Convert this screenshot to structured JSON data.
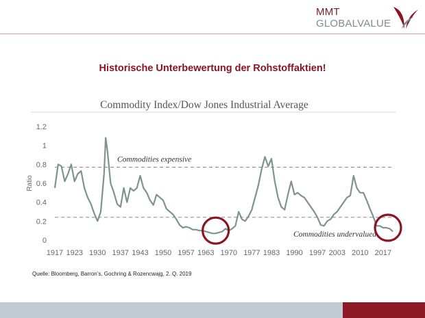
{
  "logo": {
    "line1": "MMT",
    "line2": "GLOBALVALUE"
  },
  "slide": {
    "title": "Historische Unterbewertung der Rohstoffaktien!",
    "source": "Quelle: Bloomberg, Barron’s, Gochring & Rozencwajg, 2. Q. 2019"
  },
  "colors": {
    "accent": "#8b1421",
    "line": "#7d9391",
    "logo_grey": "#7d8b97",
    "footer_grey": "#c3cbd2",
    "footer_red": "#8b1a26"
  },
  "chart_data": {
    "type": "line",
    "title": "Commodity Index/Dow Jones Industrial Average",
    "ylabel": "Ratio",
    "xlabel": "",
    "xlim": [
      1917,
      2021
    ],
    "ylim": [
      0,
      1.2
    ],
    "yticks": [
      "1.2",
      "1",
      "0.8",
      "0.6",
      "0.4",
      "0.2",
      "0"
    ],
    "xticks": [
      "1917",
      "1923",
      "1930",
      "1937",
      "1943",
      "1950",
      "1957",
      "1963",
      "1970",
      "1977",
      "1983",
      "1990",
      "1997",
      "2003",
      "2010",
      "2017"
    ],
    "grid": false,
    "reference_lines": [
      {
        "y": 0.77,
        "label": "Commodities expensive"
      },
      {
        "y": 0.24,
        "label": "Commodities undervalued"
      }
    ],
    "highlights": [
      {
        "x": 1966,
        "y": 0.1
      },
      {
        "x": 2018.5,
        "y": 0.13
      }
    ],
    "series": [
      {
        "x": [
          1917,
          1918,
          1919,
          1920,
          1921,
          1922,
          1923,
          1924,
          1925,
          1926,
          1927,
          1928,
          1929,
          1930,
          1931,
          1932,
          1932.5,
          1933,
          1934,
          1935,
          1936,
          1937,
          1938,
          1939,
          1940,
          1941,
          1942,
          1943,
          1944,
          1945,
          1946,
          1947,
          1948,
          1949,
          1950,
          1951,
          1952,
          1953,
          1954,
          1955,
          1956,
          1957,
          1958,
          1959,
          1960,
          1961,
          1962,
          1963,
          1964,
          1965,
          1966,
          1967,
          1968,
          1969,
          1970,
          1971,
          1972,
          1973,
          1974,
          1975,
          1976,
          1977,
          1978,
          1979,
          1980,
          1981,
          1982,
          1983,
          1984,
          1985,
          1986,
          1987,
          1988,
          1989,
          1990,
          1991,
          1992,
          1993,
          1994,
          1995,
          1996,
          1997,
          1998,
          1999,
          2000,
          2001,
          2002,
          2003,
          2004,
          2005,
          2006,
          2007,
          2008,
          2009,
          2010,
          2011,
          2012,
          2013,
          2014,
          2015,
          2016,
          2017,
          2018,
          2019,
          2020
        ],
        "values": [
          0.55,
          0.8,
          0.78,
          0.62,
          0.7,
          0.8,
          0.62,
          0.7,
          0.73,
          0.55,
          0.45,
          0.38,
          0.28,
          0.2,
          0.3,
          0.7,
          1.08,
          0.95,
          0.6,
          0.5,
          0.38,
          0.35,
          0.55,
          0.4,
          0.55,
          0.52,
          0.55,
          0.68,
          0.55,
          0.5,
          0.42,
          0.37,
          0.48,
          0.45,
          0.42,
          0.33,
          0.3,
          0.27,
          0.22,
          0.16,
          0.13,
          0.14,
          0.13,
          0.11,
          0.11,
          0.1,
          0.1,
          0.09,
          0.08,
          0.07,
          0.07,
          0.08,
          0.09,
          0.12,
          0.1,
          0.12,
          0.15,
          0.3,
          0.22,
          0.2,
          0.25,
          0.32,
          0.45,
          0.58,
          0.75,
          0.88,
          0.78,
          0.86,
          0.62,
          0.45,
          0.35,
          0.32,
          0.48,
          0.62,
          0.48,
          0.5,
          0.47,
          0.45,
          0.4,
          0.35,
          0.3,
          0.24,
          0.16,
          0.15,
          0.2,
          0.22,
          0.27,
          0.3,
          0.35,
          0.4,
          0.45,
          0.47,
          0.68,
          0.55,
          0.5,
          0.5,
          0.42,
          0.33,
          0.25,
          0.15,
          0.15,
          0.13,
          0.13,
          0.12,
          0.09
        ]
      }
    ]
  }
}
